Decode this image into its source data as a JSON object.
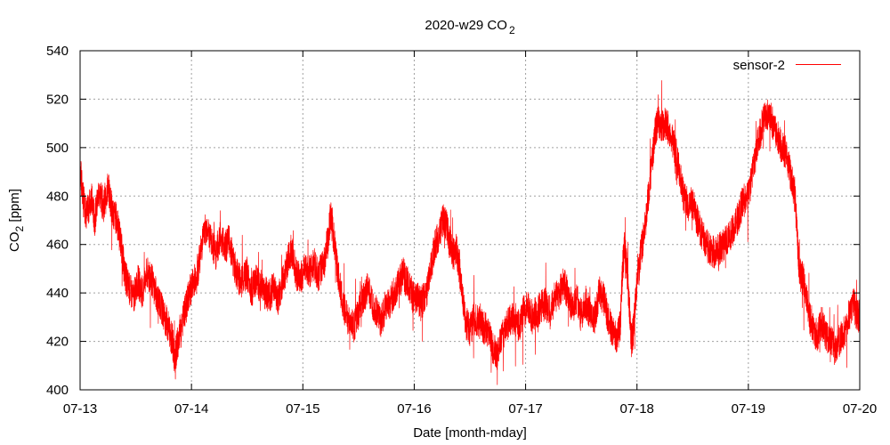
{
  "chart_data": {
    "type": "line",
    "title": "2020-w29 CO",
    "title_subscript": "2",
    "xlabel": "Date [month-mday]",
    "ylabel_prefix": "CO",
    "ylabel_subscript": "2",
    "ylabel_suffix": " [ppm]",
    "x_ticks": [
      "07-13",
      "07-14",
      "07-15",
      "07-16",
      "07-17",
      "07-18",
      "07-19",
      "07-20"
    ],
    "x_range_days": [
      0,
      7
    ],
    "ylim": [
      400,
      540
    ],
    "y_ticks": [
      400,
      420,
      440,
      460,
      480,
      500,
      520,
      540
    ],
    "grid": true,
    "legend_position": "top-right",
    "series": [
      {
        "name": "sensor-2",
        "color": "#ff0000",
        "points": [
          [
            0.0,
            492
          ],
          [
            0.03,
            478
          ],
          [
            0.06,
            472
          ],
          [
            0.1,
            480
          ],
          [
            0.13,
            470
          ],
          [
            0.17,
            482
          ],
          [
            0.21,
            476
          ],
          [
            0.25,
            484
          ],
          [
            0.29,
            474
          ],
          [
            0.33,
            470
          ],
          [
            0.37,
            460
          ],
          [
            0.4,
            448
          ],
          [
            0.44,
            442
          ],
          [
            0.48,
            438
          ],
          [
            0.52,
            445
          ],
          [
            0.56,
            440
          ],
          [
            0.6,
            448
          ],
          [
            0.64,
            446
          ],
          [
            0.68,
            440
          ],
          [
            0.72,
            435
          ],
          [
            0.76,
            430
          ],
          [
            0.8,
            425
          ],
          [
            0.83,
            420
          ],
          [
            0.85,
            412
          ],
          [
            0.87,
            418
          ],
          [
            0.9,
            425
          ],
          [
            0.94,
            432
          ],
          [
            0.98,
            440
          ],
          [
            1.02,
            445
          ],
          [
            1.06,
            450
          ],
          [
            1.1,
            462
          ],
          [
            1.14,
            468
          ],
          [
            1.18,
            460
          ],
          [
            1.22,
            456
          ],
          [
            1.26,
            464
          ],
          [
            1.3,
            458
          ],
          [
            1.34,
            462
          ],
          [
            1.38,
            452
          ],
          [
            1.42,
            446
          ],
          [
            1.46,
            445
          ],
          [
            1.5,
            448
          ],
          [
            1.54,
            441
          ],
          [
            1.58,
            445
          ],
          [
            1.62,
            443
          ],
          [
            1.66,
            440
          ],
          [
            1.7,
            439
          ],
          [
            1.74,
            442
          ],
          [
            1.78,
            437
          ],
          [
            1.82,
            445
          ],
          [
            1.86,
            452
          ],
          [
            1.9,
            458
          ],
          [
            1.94,
            448
          ],
          [
            1.98,
            446
          ],
          [
            2.02,
            450
          ],
          [
            2.06,
            448
          ],
          [
            2.1,
            452
          ],
          [
            2.14,
            447
          ],
          [
            2.18,
            452
          ],
          [
            2.22,
            460
          ],
          [
            2.25,
            472
          ],
          [
            2.28,
            462
          ],
          [
            2.31,
            450
          ],
          [
            2.34,
            440
          ],
          [
            2.38,
            432
          ],
          [
            2.42,
            428
          ],
          [
            2.46,
            426
          ],
          [
            2.5,
            432
          ],
          [
            2.54,
            438
          ],
          [
            2.58,
            442
          ],
          [
            2.62,
            436
          ],
          [
            2.66,
            432
          ],
          [
            2.7,
            428
          ],
          [
            2.74,
            434
          ],
          [
            2.78,
            436
          ],
          [
            2.82,
            440
          ],
          [
            2.86,
            444
          ],
          [
            2.9,
            448
          ],
          [
            2.94,
            444
          ],
          [
            2.98,
            440
          ],
          [
            3.02,
            438
          ],
          [
            3.06,
            436
          ],
          [
            3.1,
            438
          ],
          [
            3.14,
            448
          ],
          [
            3.18,
            458
          ],
          [
            3.22,
            464
          ],
          [
            3.26,
            470
          ],
          [
            3.29,
            468
          ],
          [
            3.32,
            460
          ],
          [
            3.35,
            456
          ],
          [
            3.38,
            458
          ],
          [
            3.42,
            445
          ],
          [
            3.46,
            428
          ],
          [
            3.5,
            425
          ],
          [
            3.54,
            430
          ],
          [
            3.58,
            428
          ],
          [
            3.62,
            426
          ],
          [
            3.66,
            424
          ],
          [
            3.7,
            418
          ],
          [
            3.74,
            414
          ],
          [
            3.78,
            420
          ],
          [
            3.82,
            426
          ],
          [
            3.86,
            428
          ],
          [
            3.9,
            430
          ],
          [
            3.94,
            426
          ],
          [
            3.98,
            432
          ],
          [
            4.02,
            434
          ],
          [
            4.06,
            430
          ],
          [
            4.1,
            432
          ],
          [
            4.14,
            434
          ],
          [
            4.18,
            436
          ],
          [
            4.22,
            432
          ],
          [
            4.26,
            438
          ],
          [
            4.3,
            440
          ],
          [
            4.34,
            444
          ],
          [
            4.38,
            440
          ],
          [
            4.42,
            434
          ],
          [
            4.46,
            438
          ],
          [
            4.5,
            430
          ],
          [
            4.54,
            436
          ],
          [
            4.58,
            432
          ],
          [
            4.62,
            430
          ],
          [
            4.66,
            440
          ],
          [
            4.7,
            438
          ],
          [
            4.74,
            430
          ],
          [
            4.78,
            424
          ],
          [
            4.82,
            422
          ],
          [
            4.85,
            426
          ],
          [
            4.87,
            450
          ],
          [
            4.89,
            460
          ],
          [
            4.91,
            450
          ],
          [
            4.93,
            435
          ],
          [
            4.95,
            420
          ],
          [
            4.97,
            425
          ],
          [
            5.0,
            445
          ],
          [
            5.04,
            458
          ],
          [
            5.08,
            470
          ],
          [
            5.12,
            488
          ],
          [
            5.16,
            505
          ],
          [
            5.19,
            512
          ],
          [
            5.22,
            508
          ],
          [
            5.26,
            510
          ],
          [
            5.3,
            506
          ],
          [
            5.34,
            500
          ],
          [
            5.38,
            490
          ],
          [
            5.42,
            480
          ],
          [
            5.46,
            476
          ],
          [
            5.5,
            478
          ],
          [
            5.54,
            470
          ],
          [
            5.58,
            465
          ],
          [
            5.62,
            460
          ],
          [
            5.66,
            458
          ],
          [
            5.7,
            456
          ],
          [
            5.74,
            458
          ],
          [
            5.78,
            460
          ],
          [
            5.82,
            462
          ],
          [
            5.86,
            466
          ],
          [
            5.9,
            470
          ],
          [
            5.94,
            476
          ],
          [
            5.98,
            480
          ],
          [
            6.02,
            485
          ],
          [
            6.06,
            495
          ],
          [
            6.1,
            505
          ],
          [
            6.14,
            512
          ],
          [
            6.18,
            515
          ],
          [
            6.22,
            510
          ],
          [
            6.26,
            505
          ],
          [
            6.3,
            500
          ],
          [
            6.34,
            498
          ],
          [
            6.38,
            488
          ],
          [
            6.42,
            480
          ],
          [
            6.44,
            462
          ],
          [
            6.46,
            448
          ],
          [
            6.5,
            445
          ],
          [
            6.54,
            432
          ],
          [
            6.58,
            425
          ],
          [
            6.62,
            422
          ],
          [
            6.66,
            428
          ],
          [
            6.7,
            422
          ],
          [
            6.74,
            420
          ],
          [
            6.78,
            418
          ],
          [
            6.82,
            420
          ],
          [
            6.86,
            424
          ],
          [
            6.9,
            430
          ],
          [
            6.94,
            436
          ],
          [
            6.97,
            432
          ],
          [
            7.0,
            430
          ]
        ]
      }
    ]
  }
}
